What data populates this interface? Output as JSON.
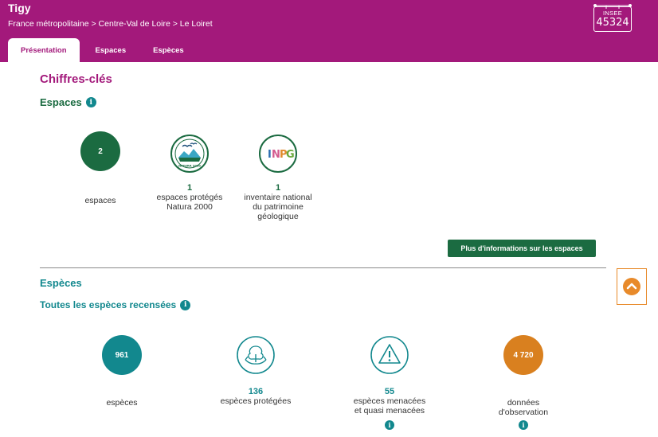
{
  "header": {
    "title": "Tigy",
    "breadcrumb": "France métropolitaine > Centre-Val de Loire > Le Loiret",
    "insee_label": "INSEE",
    "insee_code": "45324"
  },
  "tabs": [
    {
      "label": "Présentation",
      "active": true
    },
    {
      "label": "Espaces",
      "active": false
    },
    {
      "label": "Espèces",
      "active": false
    }
  ],
  "key_figures_title": "Chiffres-clés",
  "spaces": {
    "title": "Espaces",
    "stats": [
      {
        "value": "2",
        "label": "espaces"
      },
      {
        "value": "1",
        "label_line1": "espaces protégés",
        "label_line2": "Natura 2000",
        "logo_text": "NATURA 2000"
      },
      {
        "value": "1",
        "label_line1": "inventaire national",
        "label_line2": "du patrimoine",
        "label_line3": "géologique",
        "logo_text": "INPG"
      }
    ],
    "more_button": "Plus d'informations sur les espaces"
  },
  "species": {
    "title": "Espèces",
    "subtitle": "Toutes les espèces recensées",
    "stats": [
      {
        "value": "961",
        "label": "espèces"
      },
      {
        "value": "136",
        "label": "espèces protégées"
      },
      {
        "value": "55",
        "label_line1": "espèces menacées",
        "label_line2": "et quasi menacées"
      },
      {
        "value": "4 720",
        "label_line1": "données",
        "label_line2": "d'observation"
      }
    ]
  },
  "colors": {
    "brand": "#a3197b",
    "green": "#1b6b41",
    "teal": "#12888e",
    "orange": "#d9801f"
  }
}
